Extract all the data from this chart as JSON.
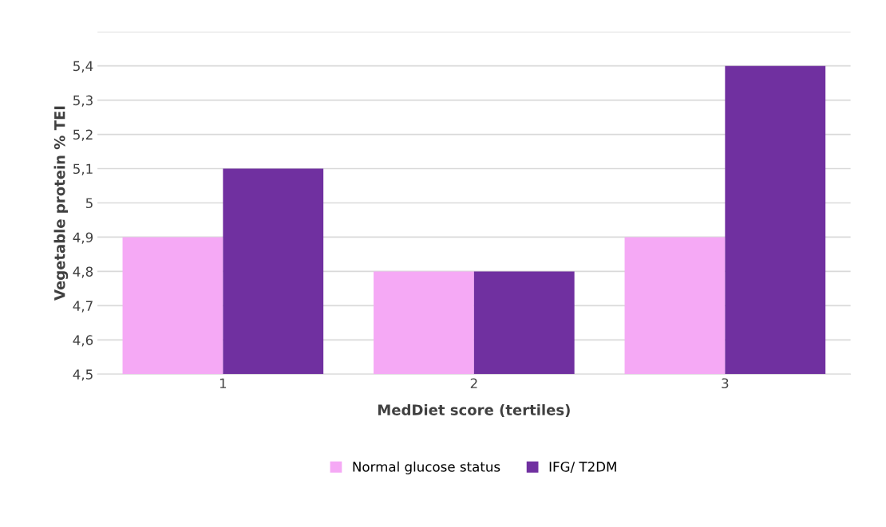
{
  "chart_data": {
    "type": "bar",
    "xlabel": "MedDiet score (tertiles)",
    "ylabel": "Vegetable protein % TEI",
    "categories": [
      "1",
      "2",
      "3"
    ],
    "series": [
      {
        "name": "Normal glucose status",
        "color": "#f5a9f5",
        "values": [
          4.9,
          4.8,
          4.9
        ]
      },
      {
        "name": "IFG/ T2DM",
        "color": "#7030a0",
        "values": [
          5.1,
          4.8,
          5.4
        ]
      }
    ],
    "ylim": [
      4.5,
      5.5
    ],
    "yticks": [
      {
        "value": 4.5,
        "label": "4,5"
      },
      {
        "value": 4.6,
        "label": "4,6"
      },
      {
        "value": 4.7,
        "label": "4,7"
      },
      {
        "value": 4.8,
        "label": "4,8"
      },
      {
        "value": 4.9,
        "label": "4,9"
      },
      {
        "value": 5.0,
        "label": "5"
      },
      {
        "value": 5.1,
        "label": "5,1"
      },
      {
        "value": 5.2,
        "label": "5,2"
      },
      {
        "value": 5.3,
        "label": "5,3"
      },
      {
        "value": 5.4,
        "label": "5,4"
      },
      {
        "value": 5.5,
        "label": null
      }
    ],
    "grid": "y",
    "legend": "bottom"
  }
}
